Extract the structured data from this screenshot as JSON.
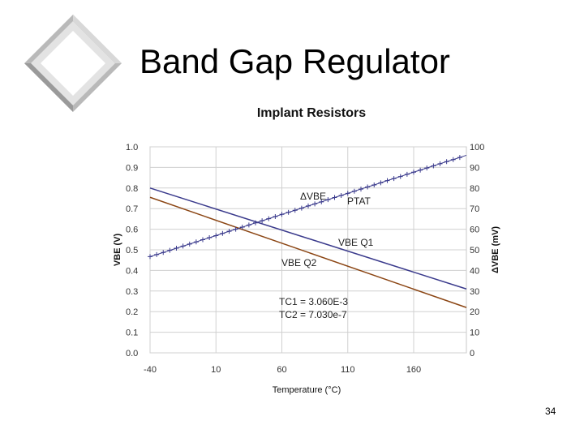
{
  "slide": {
    "title": "Band Gap Regulator",
    "page_number": "34"
  },
  "chart_data": {
    "type": "line",
    "title": "Implant Resistors",
    "xlabel": "Temperature (°C)",
    "ylabel_left": "VBE (V)",
    "ylabel_right": "ΔVBE (mV)",
    "xlim": [
      -40,
      200
    ],
    "ylim_left": [
      0.0,
      1.0
    ],
    "ylim_right": [
      0,
      100
    ],
    "x_ticks": [
      "-40",
      "10",
      "60",
      "110",
      "160"
    ],
    "y_ticks_left": [
      "0.0",
      "0.1",
      "0.2",
      "0.3",
      "0.4",
      "0.5",
      "0.6",
      "0.7",
      "0.8",
      "0.9",
      "1.0"
    ],
    "y_ticks_right": [
      "0",
      "10",
      "20",
      "30",
      "40",
      "50",
      "60",
      "70",
      "80",
      "90",
      "100"
    ],
    "grid": true,
    "series": [
      {
        "name": "VBE Q1",
        "axis": "left",
        "color": "#3a3a8c",
        "marker": "none",
        "x": [
          -40,
          200
        ],
        "y": [
          0.8,
          0.31
        ]
      },
      {
        "name": "VBE Q2",
        "axis": "left",
        "color": "#8b4513",
        "marker": "none",
        "x": [
          -40,
          200
        ],
        "y": [
          0.755,
          0.22
        ]
      },
      {
        "name": "ΔVBE PTAT",
        "axis": "right",
        "color": "#3a3a8c",
        "marker": "plus",
        "x": [
          -40,
          -30,
          -20,
          -10,
          0,
          10,
          20,
          30,
          40,
          50,
          60,
          70,
          80,
          90,
          100,
          110,
          120,
          130,
          140,
          150,
          160,
          170,
          180,
          190,
          200
        ],
        "y": [
          46.7,
          48.7,
          50.8,
          52.8,
          54.9,
          56.9,
          59.0,
          61.0,
          63.1,
          65.1,
          67.2,
          69.2,
          71.3,
          73.3,
          75.4,
          77.4,
          79.5,
          81.5,
          83.6,
          85.6,
          87.7,
          89.7,
          91.8,
          93.8,
          95.9
        ]
      }
    ],
    "annotations": {
      "delta_vbe_label": "ΔVBE",
      "ptat_label": "PTAT",
      "vbe_q1_label": "VBE Q1",
      "vbe_q2_label": "VBE Q2",
      "tc1": "TC1 = 3.060E-3",
      "tc2": "TC2 = 7.030e-7"
    }
  }
}
